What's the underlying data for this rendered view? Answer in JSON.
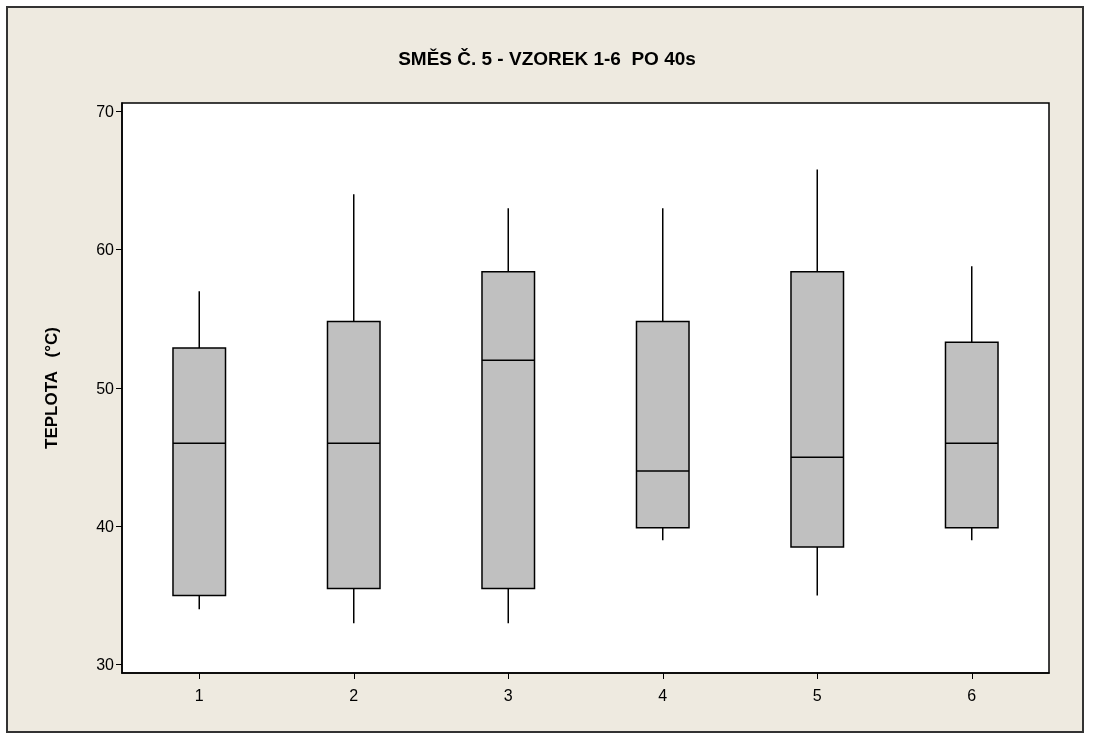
{
  "chart_data": {
    "type": "box",
    "title": "SMĚS Č. 5 - VZOREK 1-6  PO 40s",
    "ylabel": "TEPLOTA   (°C)",
    "categories": [
      "1",
      "2",
      "3",
      "4",
      "5",
      "6"
    ],
    "color": "#c0c0c0",
    "boxes": [
      {
        "low": 34,
        "q1": 35,
        "median": 46,
        "q3": 52.9,
        "high": 57
      },
      {
        "low": 33,
        "q1": 35.5,
        "median": 46,
        "q3": 54.8,
        "high": 64
      },
      {
        "low": 33,
        "q1": 35.5,
        "median": 52,
        "q3": 58.4,
        "high": 63
      },
      {
        "low": 39,
        "q1": 39.9,
        "median": 44,
        "q3": 54.8,
        "high": 63
      },
      {
        "low": 35,
        "q1": 38.5,
        "median": 45,
        "q3": 58.4,
        "high": 65.8
      },
      {
        "low": 39,
        "q1": 39.9,
        "median": 46,
        "q3": 53.3,
        "high": 58.8
      }
    ],
    "ylim": [
      29.4,
      70.6
    ],
    "yticks": [
      30,
      40,
      50,
      60,
      70
    ],
    "grid": false
  }
}
